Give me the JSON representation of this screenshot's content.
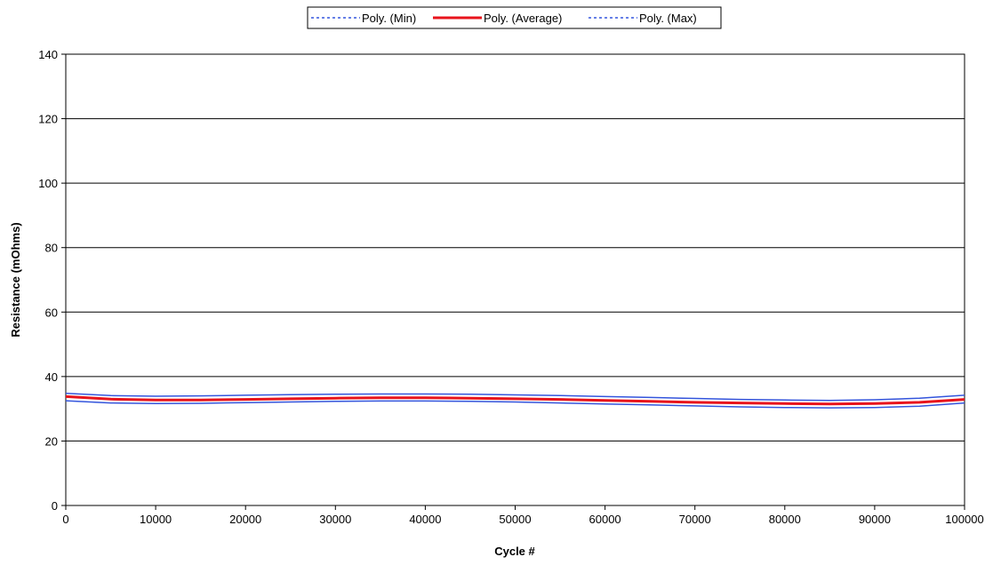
{
  "chart_data": {
    "type": "line",
    "title": "",
    "xlabel": "Cycle #",
    "ylabel": "Resistance (mOhms)",
    "xlim": [
      0,
      100000
    ],
    "ylim": [
      0,
      140
    ],
    "x_ticks": [
      0,
      10000,
      20000,
      30000,
      40000,
      50000,
      60000,
      70000,
      80000,
      90000,
      100000
    ],
    "y_ticks": [
      0,
      20,
      40,
      60,
      80,
      100,
      120,
      140
    ],
    "x_tick_labels": [
      "0",
      "10000",
      "20000",
      "30000",
      "40000",
      "50000",
      "60000",
      "70000",
      "80000",
      "90000",
      "100000"
    ],
    "y_tick_labels": [
      "0",
      "20",
      "40",
      "60",
      "80",
      "100",
      "120",
      "140"
    ],
    "grid": {
      "horizontal": true,
      "vertical": false
    },
    "legend_position": "top-center",
    "series": [
      {
        "name": "Poly. (Min)",
        "color": "#3355dd",
        "style": "dashed",
        "x": [
          0,
          5000,
          10000,
          15000,
          20000,
          25000,
          30000,
          35000,
          40000,
          45000,
          50000,
          55000,
          60000,
          65000,
          70000,
          75000,
          80000,
          85000,
          90000,
          95000,
          100000
        ],
        "values": [
          32.5,
          31.8,
          31.6,
          31.7,
          31.9,
          32.1,
          32.3,
          32.4,
          32.4,
          32.3,
          32.1,
          31.8,
          31.5,
          31.2,
          30.9,
          30.6,
          30.4,
          30.3,
          30.4,
          30.8,
          31.8
        ]
      },
      {
        "name": "Poly. (Average)",
        "color": "#e8141c",
        "style": "solid",
        "x": [
          0,
          5000,
          10000,
          15000,
          20000,
          25000,
          30000,
          35000,
          40000,
          45000,
          50000,
          55000,
          60000,
          65000,
          70000,
          75000,
          80000,
          85000,
          90000,
          95000,
          100000
        ],
        "values": [
          33.8,
          33.0,
          32.7,
          32.7,
          32.9,
          33.1,
          33.3,
          33.4,
          33.4,
          33.3,
          33.1,
          32.9,
          32.6,
          32.3,
          32.0,
          31.8,
          31.6,
          31.5,
          31.6,
          32.0,
          32.9
        ]
      },
      {
        "name": "Poly. (Max)",
        "color": "#3355dd",
        "style": "dashed",
        "x": [
          0,
          5000,
          10000,
          15000,
          20000,
          25000,
          30000,
          35000,
          40000,
          45000,
          50000,
          55000,
          60000,
          65000,
          70000,
          75000,
          80000,
          85000,
          90000,
          95000,
          100000
        ],
        "values": [
          34.8,
          34.1,
          33.9,
          34.0,
          34.2,
          34.4,
          34.5,
          34.6,
          34.6,
          34.5,
          34.3,
          34.1,
          33.8,
          33.5,
          33.2,
          32.9,
          32.7,
          32.6,
          32.8,
          33.3,
          34.2
        ]
      }
    ]
  }
}
